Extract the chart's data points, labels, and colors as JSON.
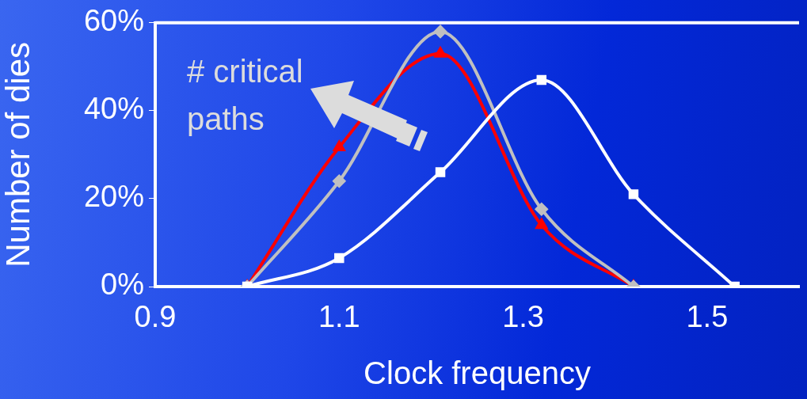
{
  "chart_data": {
    "type": "line",
    "xlabel": "Clock frequency",
    "ylabel": "Number of dies",
    "xlim": [
      0.9,
      1.6
    ],
    "xticks": [
      0.9,
      1.1,
      1.3,
      1.5
    ],
    "ylim": [
      0,
      60
    ],
    "yticks": [
      {
        "value": 0,
        "label": "0%"
      },
      {
        "value": 20,
        "label": "20%"
      },
      {
        "value": 40,
        "label": "40%"
      },
      {
        "value": 60,
        "label": "60%"
      }
    ],
    "grid": false,
    "legend": false,
    "annotations": [
      "# critical paths"
    ],
    "series": [
      {
        "color": "#ffffff",
        "marker": "square",
        "x": [
          1.0,
          1.1,
          1.21,
          1.32,
          1.42,
          1.53
        ],
        "values": [
          0,
          6.5,
          26,
          47,
          21,
          0
        ]
      },
      {
        "color": "#c0c0c0",
        "marker": "diamond",
        "x": [
          1.0,
          1.1,
          1.21,
          1.32,
          1.42
        ],
        "values": [
          0,
          24,
          58,
          17.6,
          0
        ]
      },
      {
        "color": "#ff0000",
        "marker": "triangle",
        "x": [
          1.0,
          1.1,
          1.21,
          1.32,
          1.42
        ],
        "values": [
          0,
          31.7,
          53,
          14,
          0
        ]
      }
    ]
  }
}
